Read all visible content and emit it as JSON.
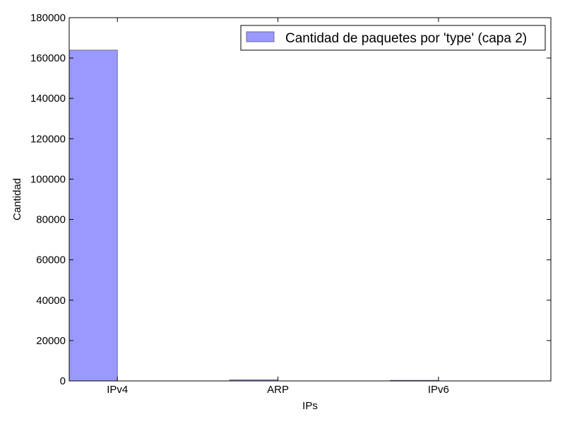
{
  "chart_data": {
    "type": "bar",
    "categories": [
      "IPv4",
      "ARP",
      "IPv6"
    ],
    "series": [
      {
        "name": "Cantidad de paquetes por 'type' (capa 2)",
        "values": [
          163900,
          500,
          250
        ],
        "color": "#9999ff"
      }
    ],
    "xlabel": "IPs",
    "ylabel": "Cantidad",
    "ylim": [
      0,
      180000
    ],
    "yticks": [
      "0",
      "20000",
      "40000",
      "60000",
      "80000",
      "100000",
      "120000",
      "140000",
      "160000",
      "180000"
    ],
    "grid": false,
    "legend_position": "top-right",
    "bar_edge_color": "#6b6b8f"
  }
}
